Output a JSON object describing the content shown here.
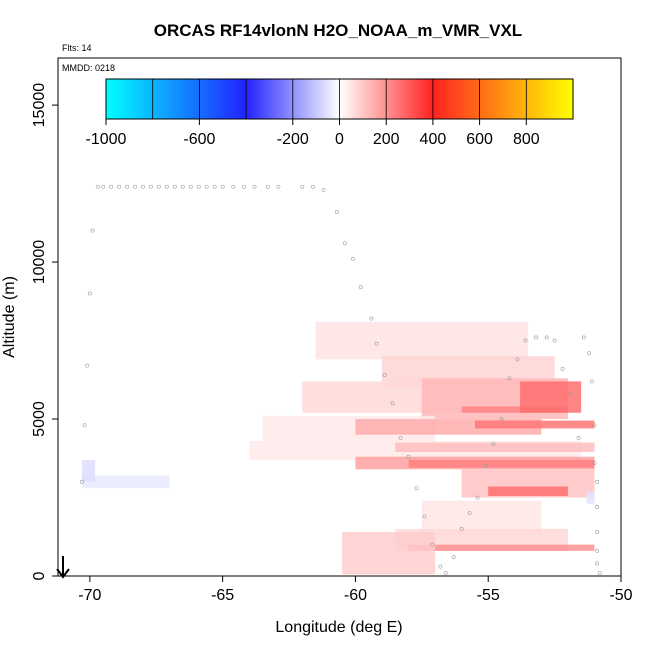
{
  "chart_data": {
    "type": "heatmap",
    "title": "ORCAS RF14vlonN H2O_NOAA_m_VMR_VXL",
    "flights_label": "Flts: 14",
    "date_label": "MMDD: 0218",
    "xlabel": "Longitude (deg E)",
    "ylabel": "Altitude (m)",
    "xlim": [
      -71.2,
      -50
    ],
    "ylim": [
      0,
      16500
    ],
    "x_ticks": [
      -70,
      -65,
      -60,
      -55,
      -50
    ],
    "x_tick_labels": [
      "-70",
      "-65",
      "-60",
      "-55",
      "-50"
    ],
    "y_ticks": [
      0,
      5000,
      10000,
      15000
    ],
    "y_tick_labels": [
      "0",
      "5000",
      "10000",
      "15000"
    ],
    "colorbar": {
      "range": [
        -1000,
        1000
      ],
      "tick_values": [
        -1000,
        -600,
        -200,
        0,
        200,
        400,
        600,
        800
      ],
      "tick_labels": [
        "-1000",
        "-600",
        "-200",
        "0",
        "200",
        "400",
        "600",
        "800"
      ],
      "colors": [
        "#00ffff",
        "#2222ff",
        "#ffffff",
        "#ff2222",
        "#ffff00"
      ]
    },
    "cells": [
      {
        "x0": -61.5,
        "x1": -53.5,
        "y0": 6900,
        "y1": 8100,
        "v": 50
      },
      {
        "x0": -59,
        "x1": -52.5,
        "y0": 6000,
        "y1": 7000,
        "v": 80
      },
      {
        "x0": -62,
        "x1": -53,
        "y0": 5200,
        "y1": 6200,
        "v": 70
      },
      {
        "x0": -57.5,
        "x1": -52,
        "y0": 5000,
        "y1": 6300,
        "v": 130
      },
      {
        "x0": -56,
        "x1": -52,
        "y0": 5200,
        "y1": 5400,
        "v": 220
      },
      {
        "x0": -53.8,
        "x1": -51.5,
        "y0": 5200,
        "y1": 6200,
        "v": 260
      },
      {
        "x0": -63.5,
        "x1": -57,
        "y0": 4300,
        "y1": 5100,
        "v": 40
      },
      {
        "x0": -60,
        "x1": -53,
        "y0": 4500,
        "y1": 5000,
        "v": 150
      },
      {
        "x0": -55.5,
        "x1": -51,
        "y0": 4700,
        "y1": 4950,
        "v": 250
      },
      {
        "x0": -64,
        "x1": -51.5,
        "y0": 3700,
        "y1": 4300,
        "v": 40
      },
      {
        "x0": -58.5,
        "x1": -51,
        "y0": 3950,
        "y1": 4250,
        "v": 120
      },
      {
        "x0": -60,
        "x1": -51,
        "y0": 3400,
        "y1": 3800,
        "v": 170
      },
      {
        "x0": -58,
        "x1": -51,
        "y0": 3450,
        "y1": 3700,
        "v": 230
      },
      {
        "x0": -56,
        "x1": -51,
        "y0": 2500,
        "y1": 3400,
        "v": 110
      },
      {
        "x0": -55,
        "x1": -52,
        "y0": 2550,
        "y1": 2850,
        "v": 260
      },
      {
        "x0": -57.5,
        "x1": -53,
        "y0": 1300,
        "y1": 2400,
        "v": 45
      },
      {
        "x0": -58.5,
        "x1": -52,
        "y0": 800,
        "y1": 1500,
        "v": 70
      },
      {
        "x0": -58,
        "x1": -51,
        "y0": 800,
        "y1": 1000,
        "v": 200
      },
      {
        "x0": -60.5,
        "x1": -57,
        "y0": 50,
        "y1": 1400,
        "v": 90
      },
      {
        "x0": -70.3,
        "x1": -67,
        "y0": 2800,
        "y1": 3200,
        "v": -40
      },
      {
        "x0": -70.3,
        "x1": -69.8,
        "y0": 3000,
        "y1": 3700,
        "v": -60
      },
      {
        "x0": -51.3,
        "x1": -51,
        "y0": 2300,
        "y1": 2700,
        "v": -50
      }
    ],
    "track": [
      [
        -70.3,
        3000
      ],
      [
        -70.2,
        4800
      ],
      [
        -70.1,
        6700
      ],
      [
        -70,
        9000
      ],
      [
        -69.9,
        11000
      ],
      [
        -69.7,
        12400
      ],
      [
        -69.5,
        12400
      ],
      [
        -69.2,
        12400
      ],
      [
        -68.9,
        12400
      ],
      [
        -68.6,
        12400
      ],
      [
        -68.3,
        12400
      ],
      [
        -68,
        12400
      ],
      [
        -67.7,
        12400
      ],
      [
        -67.4,
        12400
      ],
      [
        -67.1,
        12400
      ],
      [
        -66.8,
        12400
      ],
      [
        -66.5,
        12400
      ],
      [
        -66.2,
        12400
      ],
      [
        -65.9,
        12400
      ],
      [
        -65.6,
        12400
      ],
      [
        -65.3,
        12400
      ],
      [
        -65,
        12400
      ],
      [
        -64.6,
        12400
      ],
      [
        -64.2,
        12400
      ],
      [
        -63.8,
        12400
      ],
      [
        -63.3,
        12400
      ],
      [
        -62.9,
        12400
      ],
      [
        -62,
        12400
      ],
      [
        -61.6,
        12400
      ],
      [
        -61.2,
        12300
      ],
      [
        -60.7,
        11600
      ],
      [
        -60.4,
        10600
      ],
      [
        -60.1,
        10100
      ],
      [
        -59.8,
        9200
      ],
      [
        -59.4,
        8200
      ],
      [
        -59.2,
        7400
      ],
      [
        -58.9,
        6400
      ],
      [
        -58.6,
        5500
      ],
      [
        -58.3,
        4400
      ],
      [
        -58,
        3800
      ],
      [
        -57.7,
        2800
      ],
      [
        -57.4,
        1900
      ],
      [
        -57.1,
        1000
      ],
      [
        -56.8,
        300
      ],
      [
        -56.6,
        100
      ],
      [
        -56.3,
        600
      ],
      [
        -56,
        1500
      ],
      [
        -55.7,
        2000
      ],
      [
        -55.4,
        2500
      ],
      [
        -55.1,
        3500
      ],
      [
        -54.8,
        4200
      ],
      [
        -54.5,
        5000
      ],
      [
        -54.2,
        6300
      ],
      [
        -53.9,
        6900
      ],
      [
        -53.6,
        7500
      ],
      [
        -53.2,
        7600
      ],
      [
        -52.8,
        7600
      ],
      [
        -52.5,
        7500
      ],
      [
        -52.2,
        6600
      ],
      [
        -51.9,
        5800
      ],
      [
        -51.6,
        4400
      ],
      [
        -51.4,
        7600
      ],
      [
        -51.2,
        7100
      ],
      [
        -51.1,
        6200
      ],
      [
        -51,
        4800
      ],
      [
        -51,
        3600
      ],
      [
        -50.9,
        3000
      ],
      [
        -50.9,
        2200
      ],
      [
        -50.9,
        1400
      ],
      [
        -50.9,
        800
      ],
      [
        -50.9,
        400
      ],
      [
        -50.8,
        100
      ]
    ]
  }
}
